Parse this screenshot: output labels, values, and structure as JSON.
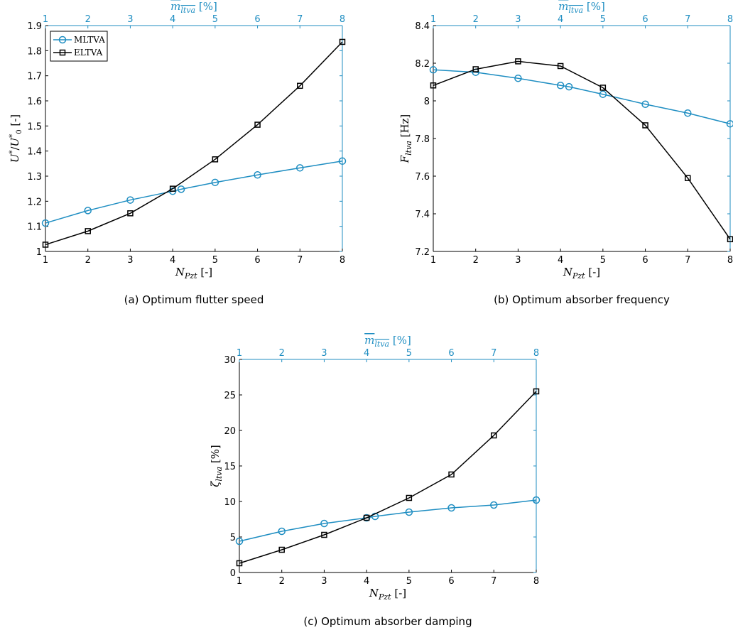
{
  "colors": {
    "mltva": "#1f8ec2",
    "eltva": "#000000",
    "top_axis": "#1f8ec2"
  },
  "legend": {
    "items": [
      "MLTVA",
      "ELTVA"
    ],
    "placement": "top-left",
    "panel": 0
  },
  "chart_data": [
    {
      "type": "line",
      "caption": "(a) Optimum flutter speed",
      "xlabel": "N_Pzt [-]",
      "ylabel": "U*/U*_0 [-]",
      "top_xlabel": "m_ltva [%]",
      "xlim": [
        1,
        8
      ],
      "ylim": [
        1,
        1.9
      ],
      "xticks": [
        1,
        2,
        3,
        4,
        5,
        6,
        7,
        8
      ],
      "yticks": [
        1,
        1.1,
        1.2,
        1.3,
        1.4,
        1.5,
        1.6,
        1.7,
        1.8,
        1.9
      ],
      "ytick_labels": [
        "1",
        "1.1",
        "1.2",
        "1.3",
        "1.4",
        "1.5",
        "1.6",
        "1.7",
        "1.8",
        "1.9"
      ],
      "top_ticks": [
        1,
        2,
        3,
        4,
        5,
        6,
        7,
        8
      ],
      "grid": false,
      "series": [
        {
          "name": "MLTVA",
          "marker": "circle",
          "x": [
            1,
            2,
            3,
            4,
            4.2,
            5,
            6,
            7,
            8
          ],
          "y": [
            1.113,
            1.163,
            1.205,
            1.24,
            1.248,
            1.275,
            1.305,
            1.333,
            1.36
          ]
        },
        {
          "name": "ELTVA",
          "marker": "square",
          "x": [
            1,
            2,
            3,
            4,
            5,
            6,
            7,
            8
          ],
          "y": [
            1.027,
            1.081,
            1.152,
            1.25,
            1.367,
            1.505,
            1.66,
            1.835
          ]
        }
      ]
    },
    {
      "type": "line",
      "caption": "(b) Optimum absorber frequency",
      "xlabel": "N_Pzt [-]",
      "ylabel": "F_ltva [Hz]",
      "top_xlabel": "m_ltva [%]",
      "xlim": [
        1,
        8
      ],
      "ylim": [
        7.2,
        8.4
      ],
      "xticks": [
        1,
        2,
        3,
        4,
        5,
        6,
        7,
        8
      ],
      "yticks": [
        7.2,
        7.4,
        7.6,
        7.8,
        8,
        8.2,
        8.4
      ],
      "ytick_labels": [
        "7.2",
        "7.4",
        "7.6",
        "7.8",
        "8",
        "8.2",
        "8.4"
      ],
      "top_ticks": [
        1,
        2,
        3,
        4,
        5,
        6,
        7,
        8
      ],
      "grid": false,
      "series": [
        {
          "name": "MLTVA",
          "marker": "circle",
          "x": [
            1,
            2,
            3,
            4,
            4.2,
            5,
            6,
            7,
            8
          ],
          "y": [
            8.165,
            8.152,
            8.12,
            8.082,
            8.075,
            8.035,
            7.982,
            7.935,
            7.878
          ]
        },
        {
          "name": "ELTVA",
          "marker": "square",
          "x": [
            1,
            2,
            3,
            4,
            5,
            6,
            7,
            8
          ],
          "y": [
            8.082,
            8.168,
            8.21,
            8.185,
            8.07,
            7.87,
            7.59,
            7.265
          ]
        }
      ]
    },
    {
      "type": "line",
      "caption": "(c) Optimum absorber damping",
      "xlabel": "N_Pzt [-]",
      "ylabel": "ζ_ltva [%]",
      "top_xlabel": "m_ltva [%]",
      "xlim": [
        1,
        8
      ],
      "ylim": [
        0,
        30
      ],
      "xticks": [
        1,
        2,
        3,
        4,
        5,
        6,
        7,
        8
      ],
      "yticks": [
        0,
        5,
        10,
        15,
        20,
        25,
        30
      ],
      "ytick_labels": [
        "0",
        "5",
        "10",
        "15",
        "20",
        "25",
        "30"
      ],
      "top_ticks": [
        1,
        2,
        3,
        4,
        5,
        6,
        7,
        8
      ],
      "grid": false,
      "series": [
        {
          "name": "MLTVA",
          "marker": "circle",
          "x": [
            1,
            2,
            3,
            4,
            4.2,
            5,
            6,
            7,
            8
          ],
          "y": [
            4.4,
            5.8,
            6.9,
            7.7,
            7.9,
            8.5,
            9.1,
            9.5,
            10.2
          ]
        },
        {
          "name": "ELTVA",
          "marker": "square",
          "x": [
            1,
            2,
            3,
            4,
            5,
            6,
            7,
            8
          ],
          "y": [
            1.3,
            3.2,
            5.3,
            7.7,
            10.5,
            13.8,
            19.3,
            25.5
          ]
        }
      ]
    }
  ]
}
